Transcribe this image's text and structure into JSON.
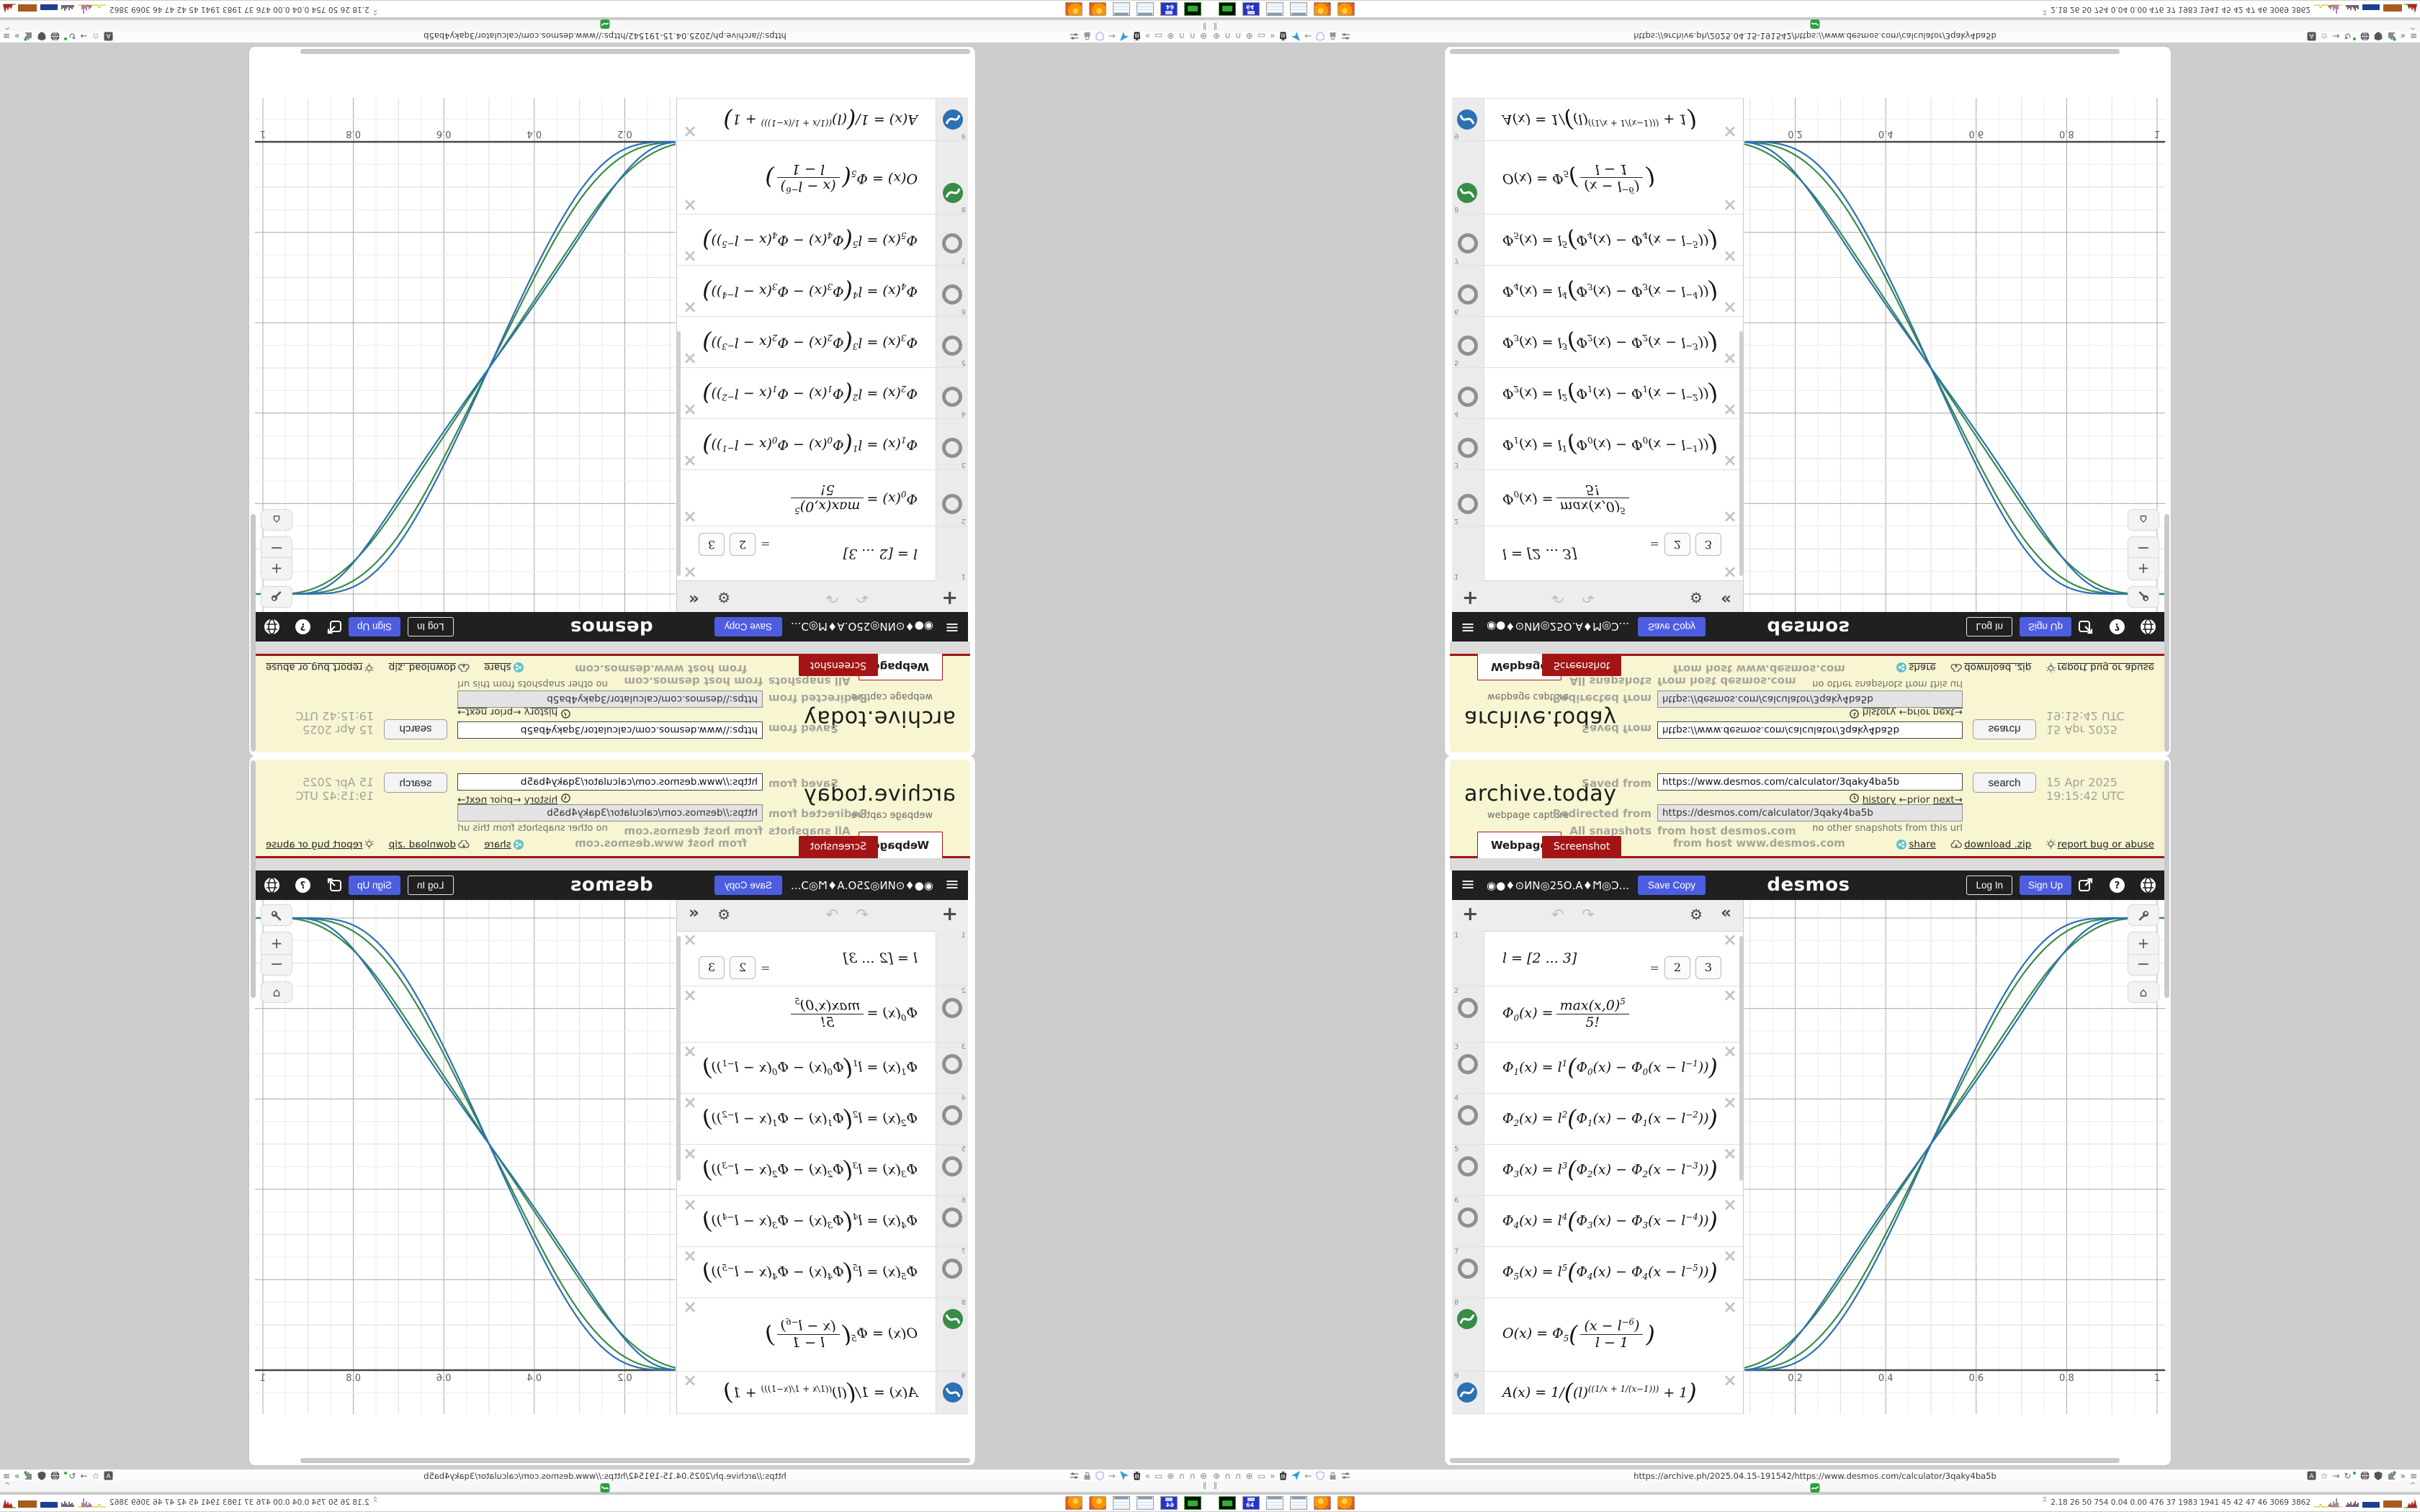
{
  "colors": {
    "yellow": "#f8f5d2",
    "archive_red": "#a31515",
    "button_blue": "#4d5de0",
    "desmos_green": "#388c46",
    "desmos_blue": "#2d70b3",
    "favicon_green": "#2c9e3f"
  },
  "archive": {
    "logo": "archive.today",
    "tagline": "webpage capture",
    "saved_label": "Saved from",
    "saved_url": "https://www.desmos.com/calculator/3qaky4ba5b",
    "search_button": "search",
    "snapshot_date": "15 Apr 2025 19:15:42 UTC",
    "history_link": "history",
    "prior_link": "←prior",
    "next_link": "next→",
    "redirected_label": "Redirected from",
    "redirected_url": "https://desmos.com/calculator/3qaky4ba5b",
    "no_snapshots": "no other snapshots from this url",
    "all_snapshots_label": "All snapshots",
    "host1": "from host desmos.com",
    "host2": "from host www.desmos.com",
    "tab_webpage": "Webpage",
    "tab_screenshot": "Screenshot",
    "share_link": "share",
    "download_link": "download .zip",
    "report_link": "report bug or abuse"
  },
  "desmos": {
    "header": {
      "title": "◉●♦⊙ИN◎25Ο.A♦Ϻ◎Ɔ...",
      "save_copy": "Save Copy",
      "logo": "desmos",
      "log_in": "Log In",
      "sign_up": "Sign Up"
    },
    "toolbar": {
      "add": "+",
      "undo": "↶",
      "redo": "↷",
      "settings": "⚙",
      "collapse": "«"
    },
    "expressions": [
      {
        "num": "1",
        "icon": "none",
        "math": [
          {
            "t": "l = [2 ... 3]"
          }
        ],
        "result": [
          "2",
          "3"
        ]
      },
      {
        "num": "2",
        "icon": "hidden",
        "math": [
          {
            "t": "Φ_0_(x) = "
          },
          {
            "frac": [
              "max(x,0)^5^",
              "5!"
            ]
          }
        ]
      },
      {
        "num": "3",
        "icon": "hidden",
        "math": [
          {
            "t": "Φ_1_(x) = l^1^"
          },
          {
            "t": "(",
            "big": true
          },
          {
            "t": "Φ_0_(x) − Φ_0_(x − l^−1^))"
          },
          {
            "t": ")",
            "big": true
          }
        ]
      },
      {
        "num": "4",
        "icon": "hidden",
        "math": [
          {
            "t": "Φ_2_(x) = l^2^"
          },
          {
            "t": "(",
            "big": true
          },
          {
            "t": "Φ_1_(x) − Φ_1_(x − l^−2^))"
          },
          {
            "t": ")",
            "big": true
          }
        ]
      },
      {
        "num": "5",
        "icon": "hidden",
        "math": [
          {
            "t": "Φ_3_(x) = l^3^"
          },
          {
            "t": "(",
            "big": true
          },
          {
            "t": "Φ_2_(x) − Φ_2_(x − l^−3^))"
          },
          {
            "t": ")",
            "big": true
          }
        ]
      },
      {
        "num": "6",
        "icon": "hidden",
        "math": [
          {
            "t": "Φ_4_(x) = l^4^"
          },
          {
            "t": "(",
            "big": true
          },
          {
            "t": "Φ_3_(x) − Φ_3_(x − l^−4^))"
          },
          {
            "t": ")",
            "big": true
          }
        ]
      },
      {
        "num": "7",
        "icon": "hidden",
        "math": [
          {
            "t": "Φ_5_(x) = l^5^"
          },
          {
            "t": "(",
            "big": true
          },
          {
            "t": "Φ_4_(x) − Φ_4_(x − l^−5^))"
          },
          {
            "t": ")",
            "big": true
          }
        ]
      },
      {
        "num": "8",
        "icon": "green",
        "math": [
          {
            "t": "O(x) = Φ_5_"
          },
          {
            "t": "(",
            "big": true
          },
          {
            "frac": [
              "(x − l^−6^)",
              "l − 1"
            ]
          },
          {
            "t": ")",
            "big": true
          }
        ]
      },
      {
        "num": "9",
        "icon": "blue",
        "math": [
          {
            "t": "A(x) = 1/"
          },
          {
            "t": "(",
            "big": true
          },
          {
            "t": "(l)^((1/x + 1/(x−1)))^ + 1"
          },
          {
            "t": ")",
            "big": true
          }
        ]
      }
    ],
    "graph": {
      "type": "line",
      "xticks": [
        "0.2",
        "0.4",
        "0.6",
        "0.8",
        "1"
      ],
      "xtick_values": [
        0.2,
        0.4,
        0.6,
        0.8,
        1
      ],
      "visible_x_range": [
        0.09,
        1.02
      ],
      "visible_y_range": [
        -0.1,
        1.05
      ],
      "grid_minor_step": 0.05,
      "grid_major_step": 0.2,
      "series": [
        {
          "name": "O(x), l=2",
          "fn": "O",
          "l": 2,
          "color": "#388c46"
        },
        {
          "name": "O(x), l=3",
          "fn": "O",
          "l": 3,
          "color": "#388c46"
        },
        {
          "name": "A(x), l=2",
          "fn": "A",
          "l": 2,
          "color": "#2d70b3"
        },
        {
          "name": "A(x), l=3",
          "fn": "A",
          "l": 3,
          "color": "#2d70b3"
        }
      ]
    }
  },
  "browser": {
    "url": "https://archive.ph/2025.04.15-191542/https://www.desmos.com/calculator/3qaky4ba5b",
    "urlbar_icons_left": [
      "globe-plus-icon",
      "gauge-icon",
      "gauge-icon",
      "globe-plus-icon",
      "folder-icon",
      "overflow-icon",
      "trash-icon",
      "dart-icon",
      "back-arrow-icon",
      "shield-outline-icon",
      "lock-icon",
      "sliders-icon"
    ],
    "urlbar_icons_right": [
      "translate-icon",
      "star-icon",
      "forward-arrow-icon",
      "reload-icon",
      "globe-dark-icon",
      "shield-dark-icon",
      "puzzle-icon",
      "overflow-icon",
      "menu-icon"
    ],
    "tabbar": {
      "left_glyph": "‖",
      "right_glyph": "^"
    },
    "glyphs": {
      "back": "←",
      "forward": "→",
      "star": "☆",
      "reload": "↻",
      "overflow": "»",
      "menu": "≡",
      "globe_plus": "⊕",
      "gauge": "∩",
      "folder": "▭"
    }
  },
  "taskbar": {
    "launcher_icons": [
      "system-monitor-icon",
      "floppy64-icon",
      "notepad-icon",
      "notepad-icon",
      "firefox-icon",
      "firefox-icon"
    ],
    "monitor": {
      "indicator": "^^",
      "text": "2.18  26  50  754 0.04 0.00 476  37  1983 1941  45  42  47  46  3069 3862"
    }
  }
}
